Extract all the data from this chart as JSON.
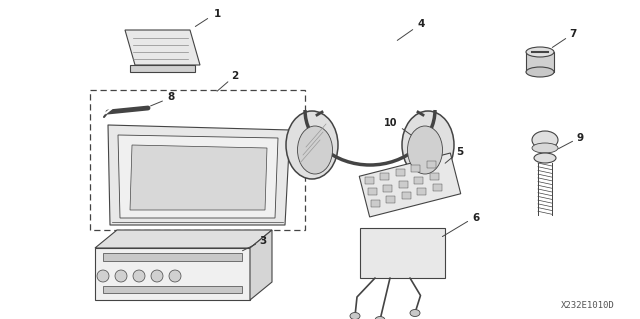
{
  "bg_color": "#ffffff",
  "diagram_code": "X232E1010D",
  "line_color": "#444444",
  "text_color": "#222222",
  "components": [
    1,
    2,
    3,
    4,
    5,
    6,
    7,
    8,
    9,
    10
  ]
}
